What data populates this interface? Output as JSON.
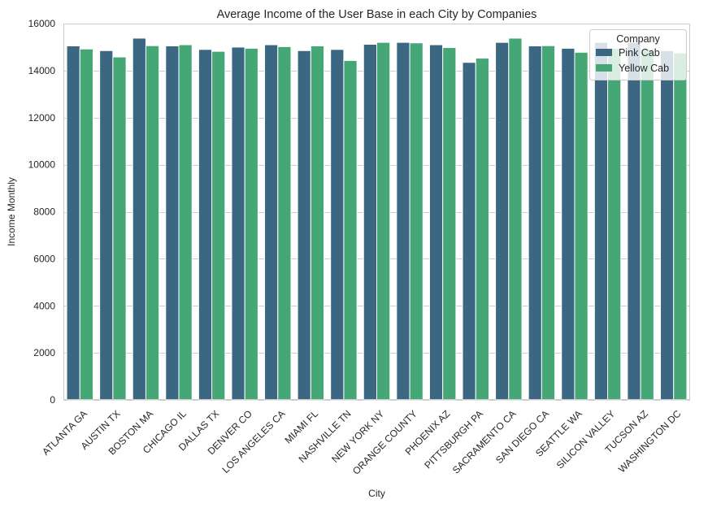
{
  "chart_data": {
    "type": "bar",
    "title": "Average Income of the User Base in each City by Companies",
    "xlabel": "City",
    "ylabel": "Income Monthly",
    "ylim": [
      0,
      16000
    ],
    "yticks": [
      0,
      2000,
      4000,
      6000,
      8000,
      10000,
      12000,
      14000,
      16000
    ],
    "grid": true,
    "legend": {
      "title": "Company",
      "placement": "top-right"
    },
    "categories": [
      "ATLANTA GA",
      "AUSTIN TX",
      "BOSTON MA",
      "CHICAGO IL",
      "DALLAS TX",
      "DENVER CO",
      "LOS ANGELES CA",
      "MIAMI FL",
      "NASHVILLE TN",
      "NEW YORK NY",
      "ORANGE COUNTY",
      "PHOENIX AZ",
      "PITTSBURGH PA",
      "SACRAMENTO CA",
      "SAN DIEGO CA",
      "SEATTLE WA",
      "SILICON VALLEY",
      "TUCSON AZ",
      "WASHINGTON DC"
    ],
    "series": [
      {
        "name": "Pink Cab",
        "color": "#3b6783",
        "values": [
          15050,
          14850,
          15380,
          15050,
          14900,
          15000,
          15100,
          14850,
          14900,
          15120,
          15200,
          15100,
          14350,
          15200,
          15050,
          14950,
          15200,
          15200,
          14850
        ]
      },
      {
        "name": "Yellow Cab",
        "color": "#45a776",
        "values": [
          14920,
          14580,
          15060,
          15100,
          14820,
          14950,
          15020,
          15050,
          14430,
          15200,
          15180,
          14980,
          14530,
          15380,
          15060,
          14780,
          14950,
          14900,
          14750
        ]
      }
    ]
  }
}
